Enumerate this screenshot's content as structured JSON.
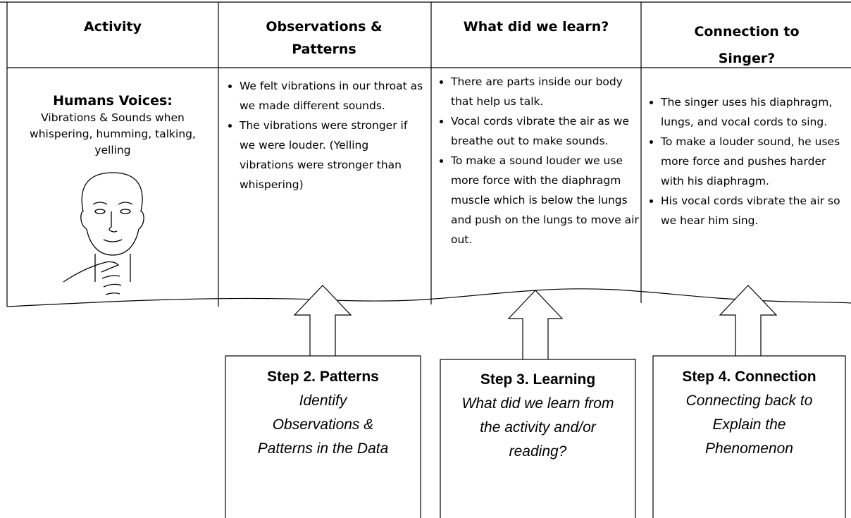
{
  "table": {
    "headers": [
      "Activity",
      "Observations & Patterns",
      "What did we learn?",
      "Connection to Singer?"
    ],
    "activity": {
      "title": "Humans Voices:",
      "subtitle": "Vibrations & Sounds when whispering, humming, talking, yelling"
    },
    "columns": [
      [
        "We felt vibrations in our throat as we made different sounds.",
        "The vibrations were stronger if we were louder. (Yelling vibrations were stronger than  whispering)"
      ],
      [
        "There are parts inside our body that help us talk.",
        "Vocal cords vibrate the air as we breathe out to make sounds.",
        "To make a sound louder we use more force with the diaphragm muscle which is below the lungs and push on the lungs to move air out."
      ],
      [
        "The singer uses his diaphragm, lungs, and vocal cords to sing.",
        "To make a louder sound, he uses more force and pushes harder with his diaphragm.",
        "His vocal cords vibrate the air so we hear him sing."
      ]
    ]
  },
  "steps": [
    {
      "title": "Step 2.  Patterns",
      "text": "Identify Observations & Patterns in the Data"
    },
    {
      "title": "Step 3.  Learning",
      "text": "What did we learn from the activity and/or reading?"
    },
    {
      "title": "Step 4. Connection",
      "text": "Connecting back to Explain the Phenomenon"
    }
  ]
}
